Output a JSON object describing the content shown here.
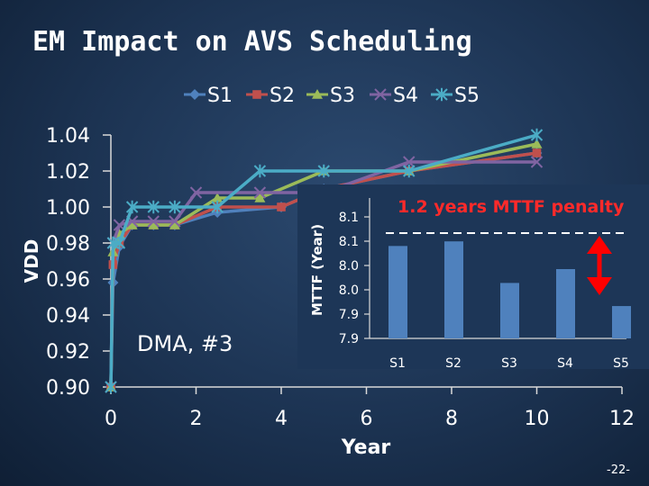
{
  "slide": {
    "title": "EM Impact on AVS Scheduling",
    "page_number": "-22-",
    "annotation": "DMA, #3",
    "penalty_label": "1.2 years MTTF penalty"
  },
  "chart_data": [
    {
      "type": "line",
      "title": "EM Impact on AVS Scheduling",
      "xlabel": "Year",
      "ylabel": "VDD",
      "xlim": [
        0,
        12
      ],
      "ylim": [
        0.9,
        1.04
      ],
      "x_ticks": [
        "0",
        "2",
        "4",
        "6",
        "8",
        "10",
        "12"
      ],
      "y_ticks": [
        "0.90",
        "0.92",
        "0.94",
        "0.96",
        "0.98",
        "1.00",
        "1.02",
        "1.04"
      ],
      "legend_position": "top",
      "series": [
        {
          "name": "S1",
          "color": "#4f81bd",
          "marker": "diamond",
          "x": [
            0,
            0.05,
            0.2,
            0.5,
            1.0,
            1.5,
            2.5,
            4.0,
            5.0,
            7.0,
            10.0
          ],
          "y": [
            0.9,
            0.958,
            0.978,
            0.99,
            0.99,
            0.99,
            0.997,
            1.0,
            1.01,
            1.02,
            1.03
          ]
        },
        {
          "name": "S2",
          "color": "#c0504d",
          "marker": "square",
          "x": [
            0,
            0.05,
            0.2,
            0.5,
            1.0,
            1.5,
            2.5,
            4.0,
            5.0,
            7.0,
            10.0
          ],
          "y": [
            0.9,
            0.968,
            0.98,
            0.99,
            0.99,
            0.99,
            1.0,
            1.0,
            1.01,
            1.02,
            1.03
          ]
        },
        {
          "name": "S3",
          "color": "#9bbb59",
          "marker": "triangle",
          "x": [
            0,
            0.05,
            0.2,
            0.5,
            1.0,
            1.5,
            2.5,
            3.5,
            5.0,
            7.0,
            10.0
          ],
          "y": [
            0.9,
            0.975,
            0.985,
            0.99,
            0.99,
            0.99,
            1.005,
            1.005,
            1.02,
            1.02,
            1.035
          ]
        },
        {
          "name": "S4",
          "color": "#8064a2",
          "marker": "x",
          "x": [
            0,
            0.05,
            0.2,
            0.5,
            1.0,
            1.5,
            2.0,
            3.5,
            5.0,
            7.0,
            10.0
          ],
          "y": [
            0.9,
            0.98,
            0.99,
            0.992,
            0.992,
            0.992,
            1.008,
            1.008,
            1.008,
            1.025,
            1.025
          ]
        },
        {
          "name": "S5",
          "color": "#4bacc6",
          "marker": "star",
          "x": [
            0,
            0.05,
            0.2,
            0.5,
            1.0,
            1.5,
            2.5,
            3.5,
            5.0,
            7.0,
            10.0
          ],
          "y": [
            0.9,
            0.98,
            0.98,
            1.0,
            1.0,
            1.0,
            1.0,
            1.02,
            1.02,
            1.02,
            1.04
          ]
        }
      ]
    },
    {
      "type": "bar",
      "ylabel": "MTTF (Year)",
      "categories": [
        "S1",
        "S2",
        "S3",
        "S4",
        "S5"
      ],
      "values": [
        8.05,
        8.06,
        7.97,
        8.0,
        7.92
      ],
      "ylim": [
        7.85,
        8.15
      ],
      "y_ticks": [
        "7.9",
        "7.9",
        "8.0",
        "8.0",
        "8.1",
        "8.1"
      ],
      "color": "#4f81bd",
      "reference_label": "1.2 years MTTF penalty"
    }
  ]
}
